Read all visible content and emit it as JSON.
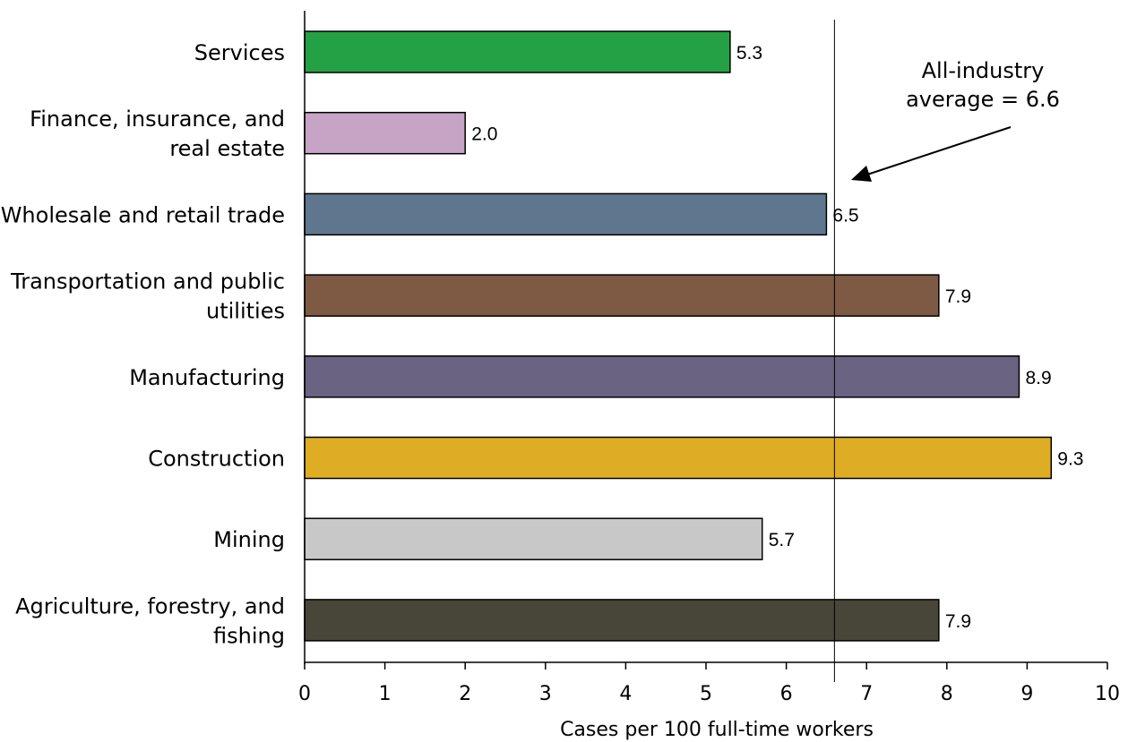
{
  "chart_data": {
    "type": "bar",
    "orientation": "horizontal",
    "categories": [
      [
        "Services"
      ],
      [
        "Finance, insurance, and",
        "real estate"
      ],
      [
        "Wholesale and retail trade"
      ],
      [
        "Transportation and public",
        "utilities"
      ],
      [
        "Manufacturing"
      ],
      [
        "Construction"
      ],
      [
        "Mining"
      ],
      [
        "Agriculture, forestry, and",
        "fishing"
      ]
    ],
    "values": [
      5.3,
      2.0,
      6.5,
      7.9,
      8.9,
      9.3,
      5.7,
      7.9
    ],
    "value_labels": [
      "5.3",
      "2.0",
      "6.5",
      "7.9",
      "8.9",
      "9.3",
      "5.7",
      "7.9"
    ],
    "colors": [
      "#24a145",
      "#c6a4c6",
      "#5e778e",
      "#7e5944",
      "#6b6382",
      "#dead23",
      "#c8c8c8",
      "#474638"
    ],
    "xlabel": "Cases per 100 full-time workers",
    "xlim": [
      0,
      10
    ],
    "xticks": [
      0,
      1,
      2,
      3,
      4,
      5,
      6,
      7,
      8,
      9,
      10
    ],
    "grid": false,
    "reference_line": {
      "value": 6.6,
      "annotation_lines": [
        "All-industry",
        "average = 6.6"
      ]
    }
  }
}
